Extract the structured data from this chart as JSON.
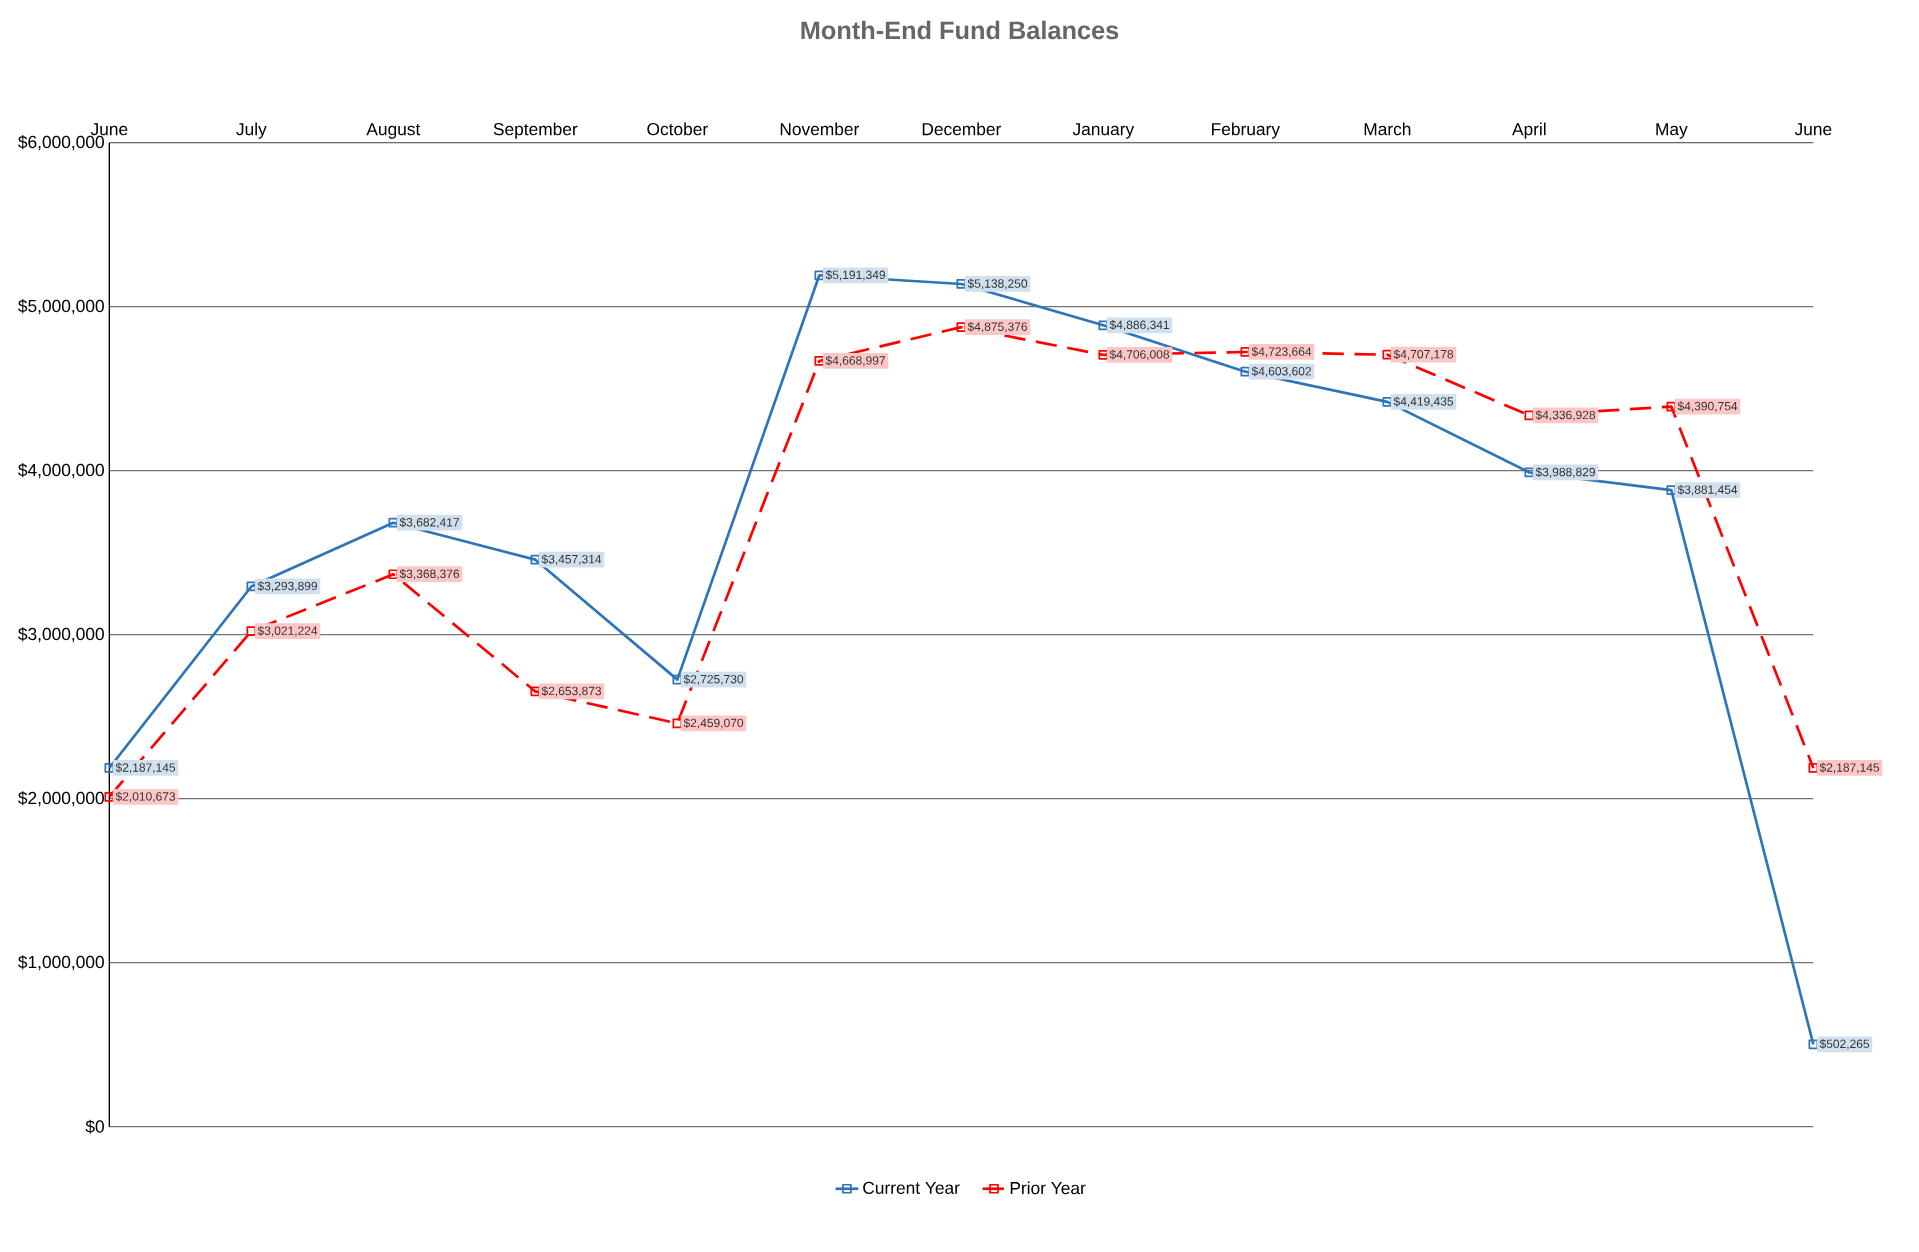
{
  "chart_data": {
    "type": "line",
    "title": "Month-End Fund Balances",
    "categories": [
      "June",
      "July",
      "August",
      "September",
      "October",
      "November",
      "December",
      "January",
      "February",
      "March",
      "April",
      "May",
      "June"
    ],
    "series": [
      {
        "name": "Current Year",
        "color": "#2e75b6",
        "line_style": "solid",
        "values": [
          2187145,
          3293899,
          3682417,
          3457314,
          2725730,
          5191349,
          5138250,
          4886341,
          4603602,
          4419435,
          3988829,
          3881454,
          502265
        ],
        "value_labels": [
          "$2,187,145",
          "$3,293,899",
          "$3,682,417",
          "$3,457,314",
          "$2,725,730",
          "$5,191,349",
          "$5,138,250",
          "$4,886,341",
          "$4,603,602",
          "$4,419,435",
          "$3,988,829",
          "$3,881,454",
          "$502,265"
        ]
      },
      {
        "name": "Prior Year",
        "color": "#ff0000",
        "line_style": "dashed",
        "values": [
          2010673,
          3021224,
          3368376,
          2653873,
          2459070,
          4668997,
          4875376,
          4706008,
          4723664,
          4707178,
          4336928,
          4390754,
          2187145
        ],
        "value_labels": [
          "$2,010,673",
          "$3,021,224",
          "$3,368,376",
          "$2,653,873",
          "$2,459,070",
          "$4,668,997",
          "$4,875,376",
          "$4,706,008",
          "$4,723,664",
          "$4,707,178",
          "$4,336,928",
          "$4,390,754",
          "$2,187,145"
        ]
      }
    ],
    "ylim": [
      0,
      6000000
    ],
    "yticks": [
      {
        "value": 0,
        "label": "$0"
      },
      {
        "value": 1000000,
        "label": "$1,000,000"
      },
      {
        "value": 2000000,
        "label": "$2,000,000"
      },
      {
        "value": 3000000,
        "label": "$3,000,000"
      },
      {
        "value": 4000000,
        "label": "$4,000,000"
      },
      {
        "value": 5000000,
        "label": "$5,000,000"
      },
      {
        "value": 6000000,
        "label": "$6,000,000"
      }
    ],
    "grid": "y",
    "legend": "bottom",
    "marker": "square"
  }
}
